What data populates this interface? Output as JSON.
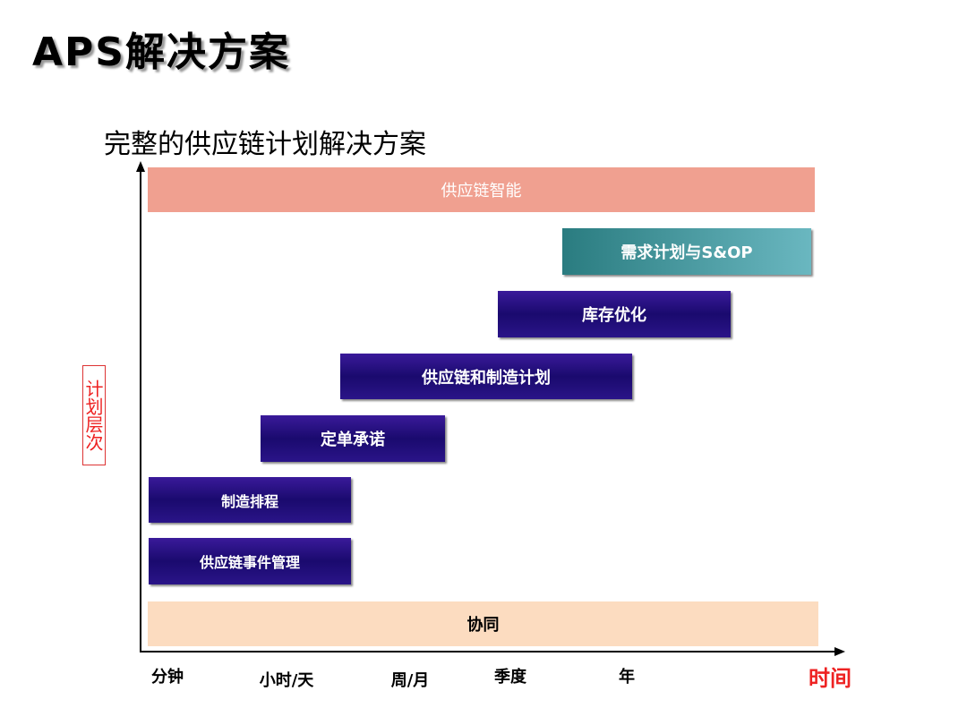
{
  "header": {
    "title": "APS解决方案",
    "subtitle": "完整的供应链计划解决方案"
  },
  "diagram": {
    "bands": [
      {
        "label": "供应链智能"
      },
      {
        "label": "需求计划与S&OP"
      },
      {
        "label": "库存优化"
      },
      {
        "label": "供应链和制造计划"
      },
      {
        "label": "定单承诺"
      },
      {
        "label": "制造排程"
      },
      {
        "label": "供应链事件管理"
      },
      {
        "label": "协同"
      }
    ],
    "y_axis_label": "计划层次",
    "x_axis_label": "时间",
    "x_labels": [
      "分钟",
      "小时/天",
      "周/月",
      "季度",
      "年"
    ]
  }
}
